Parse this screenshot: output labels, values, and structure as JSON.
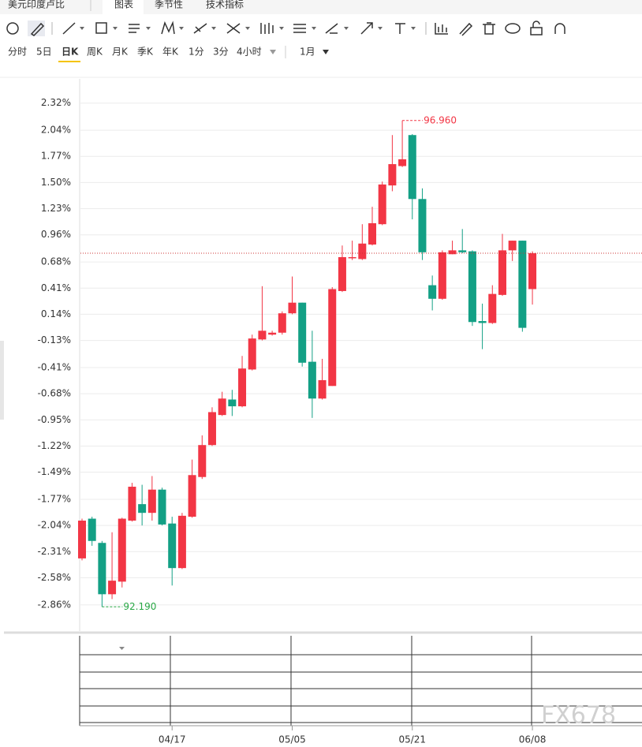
{
  "header": {
    "title": "美元印度卢比",
    "tabs": [
      "图表",
      "季节性",
      "技术指标"
    ]
  },
  "periods": [
    "分时",
    "5日",
    "日K",
    "周K",
    "月K",
    "季K",
    "年K",
    "1分",
    "3分",
    "4小时"
  ],
  "range": "1月",
  "watermark": "FX678",
  "chart_data": {
    "type": "candlestick",
    "categories": [
      null,
      null,
      null,
      null,
      null,
      null,
      null,
      null,
      null,
      "04/17",
      null,
      null,
      null,
      null,
      null,
      null,
      null,
      null,
      null,
      null,
      null,
      "05/05",
      null,
      null,
      null,
      null,
      null,
      null,
      null,
      null,
      null,
      null,
      null,
      "05/21",
      null,
      null,
      null,
      null,
      null,
      null,
      null,
      null,
      null,
      null,
      null,
      "06/08"
    ],
    "open": [
      -2.38,
      -1.97,
      -2.22,
      -2.75,
      -2.62,
      -1.99,
      -1.82,
      -1.91,
      -1.67,
      -2.02,
      -2.48,
      -1.95,
      -1.54,
      -1.21,
      -0.9,
      -0.74,
      -0.81,
      -0.43,
      -0.12,
      -0.07,
      -0.05,
      0.15,
      0.26,
      -0.35,
      -0.73,
      -0.6,
      0.38,
      0.72,
      0.71,
      0.86,
      1.07,
      1.47,
      1.67,
      1.99,
      1.33,
      0.44,
      0.3,
      0.76,
      0.8,
      0.79,
      0.07,
      0.05,
      0.34,
      0.8,
      0.9,
      0.4
    ],
    "high": [
      -1.97,
      -1.95,
      -2.2,
      -2.11,
      -1.96,
      -1.6,
      -1.62,
      -1.53,
      -1.65,
      -1.95,
      -1.91,
      -1.36,
      -1.11,
      -0.82,
      -0.66,
      -0.64,
      -0.29,
      -0.07,
      0.43,
      -0.03,
      0.17,
      0.53,
      0.26,
      -0.03,
      -0.32,
      0.42,
      0.85,
      0.9,
      1.07,
      1.25,
      1.51,
      1.99,
      2.14,
      2.0,
      1.44,
      0.54,
      0.8,
      0.9,
      1.02,
      0.8,
      0.25,
      0.44,
      0.97,
      0.9,
      0.9,
      0.79
    ],
    "low": [
      -2.4,
      -2.25,
      -2.88,
      -2.8,
      -2.68,
      -2.0,
      -2.04,
      -1.99,
      -2.04,
      -2.66,
      -2.49,
      -1.96,
      -1.56,
      -1.22,
      -0.91,
      -0.91,
      -0.82,
      -0.44,
      -0.13,
      -0.08,
      -0.07,
      0.14,
      -0.4,
      -0.93,
      -0.74,
      -0.6,
      0.37,
      0.7,
      0.7,
      0.85,
      1.06,
      1.41,
      1.66,
      1.12,
      0.7,
      0.18,
      0.29,
      0.76,
      0.77,
      0.02,
      -0.22,
      0.04,
      0.33,
      0.69,
      -0.04,
      0.24
    ],
    "close": [
      -1.99,
      -2.2,
      -2.75,
      -2.61,
      -1.97,
      -1.64,
      -1.91,
      -1.67,
      -2.03,
      -2.48,
      -1.94,
      -1.52,
      -1.21,
      -0.87,
      -0.73,
      -0.81,
      -0.42,
      -0.11,
      -0.03,
      -0.05,
      0.15,
      0.26,
      -0.36,
      -0.73,
      -0.54,
      0.4,
      0.73,
      0.73,
      0.87,
      1.08,
      1.48,
      1.69,
      1.74,
      1.33,
      0.78,
      0.3,
      0.78,
      0.8,
      0.78,
      0.06,
      0.05,
      0.35,
      0.8,
      0.9,
      0.0,
      0.77
    ],
    "up_color": "#f23645",
    "down_color": "#13a085",
    "annotations": [
      {
        "text": "96.960",
        "index": 32,
        "at": "high",
        "color": "#f23645"
      },
      {
        "text": "92.190",
        "index": 2,
        "at": "low",
        "color": "#28a745"
      }
    ],
    "ylim": [
      -3.13,
      2.57
    ],
    "yticks": [
      {
        "value": 2.32,
        "label": "2.32%"
      },
      {
        "value": 2.04,
        "label": "2.04%"
      },
      {
        "value": 1.77,
        "label": "1.77%"
      },
      {
        "value": 1.5,
        "label": "1.50%"
      },
      {
        "value": 1.23,
        "label": "1.23%"
      },
      {
        "value": 0.96,
        "label": "0.96%"
      },
      {
        "value": 0.68,
        "label": "0.68%"
      },
      {
        "value": 0.41,
        "label": "0.41%"
      },
      {
        "value": 0.14,
        "label": "0.14%"
      },
      {
        "value": -0.13,
        "label": "-0.13%"
      },
      {
        "value": -0.41,
        "label": "-0.41%"
      },
      {
        "value": -0.68,
        "label": "-0.68%"
      },
      {
        "value": -0.95,
        "label": "-0.95%"
      },
      {
        "value": -1.22,
        "label": "-1.22%"
      },
      {
        "value": -1.49,
        "label": "-1.49%"
      },
      {
        "value": -1.77,
        "label": "-1.77%"
      },
      {
        "value": -2.04,
        "label": "-2.04%"
      },
      {
        "value": -2.31,
        "label": "-2.31%"
      },
      {
        "value": -2.58,
        "label": "-2.58%"
      },
      {
        "value": -2.86,
        "label": "-2.86%"
      }
    ],
    "grid": true
  }
}
